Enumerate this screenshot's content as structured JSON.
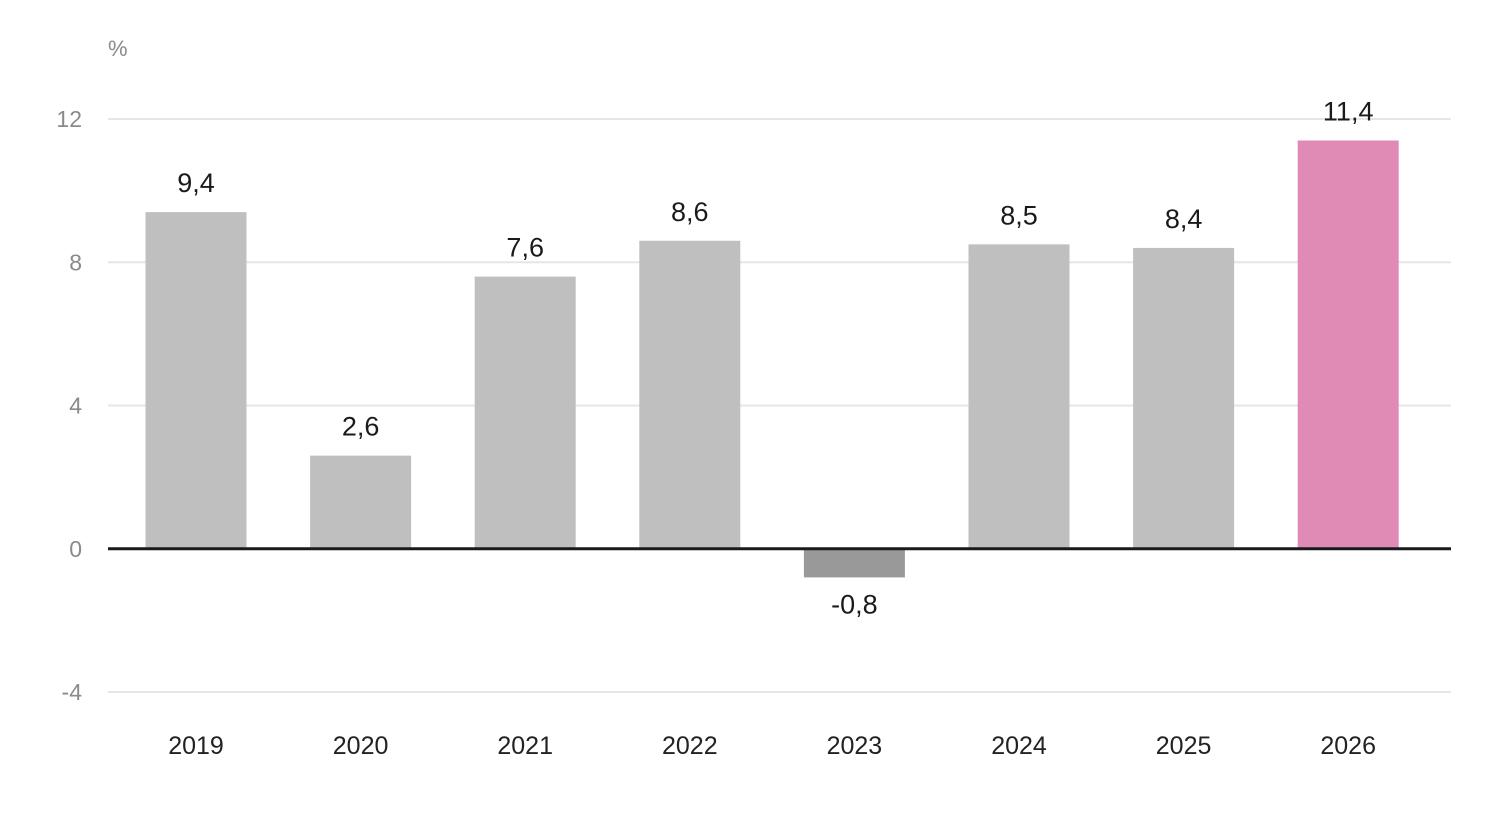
{
  "chart_data": {
    "type": "bar",
    "unit": "%",
    "categories": [
      "2019",
      "2020",
      "2021",
      "2022",
      "2023",
      "2024",
      "2025",
      "2026"
    ],
    "values": [
      9.4,
      2.6,
      7.6,
      8.6,
      -0.8,
      8.5,
      8.4,
      11.4
    ],
    "value_labels": [
      "9,4",
      "2,6",
      "7,6",
      "8,6",
      "-0,8",
      "8,5",
      "8,4",
      "11,4"
    ],
    "yticks": [
      12,
      8,
      4,
      0,
      -4
    ],
    "ytick_labels": [
      "12",
      "8",
      "4",
      "0",
      "-4"
    ],
    "ylim": [
      -4,
      12
    ],
    "grid": true,
    "legend": "none",
    "colors": {
      "positive": "#bfbfbf",
      "negative": "#999999",
      "highlight": "#e08bb6"
    },
    "highlight_index": 7
  }
}
